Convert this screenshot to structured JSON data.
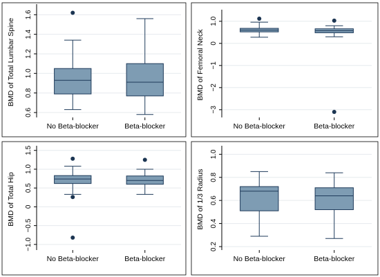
{
  "colors": {
    "box_fill": "#7e9cb3",
    "box_stroke": "#1e3a5a",
    "outlier": "#1c3552",
    "grid": "#e6eaee",
    "axis": "#000000",
    "panel_border": "#000000"
  },
  "chart_data": [
    {
      "type": "box",
      "ylabel": "BMD of Total Lumbar Spine",
      "categories": [
        "No Beta-blocker",
        "Beta-blocker"
      ],
      "ylim": [
        0.55,
        1.68
      ],
      "yticks": [
        0.6,
        0.8,
        1.0,
        1.2,
        1.4,
        1.6
      ],
      "ytick_labels": [
        "0.6",
        "0.8",
        "1.0",
        "1.2",
        "1.4",
        "1.6"
      ],
      "grid": true,
      "boxes": [
        {
          "whisker_low": 0.63,
          "q1": 0.79,
          "median": 0.93,
          "q3": 1.05,
          "whisker_high": 1.34,
          "outliers": [
            1.62
          ]
        },
        {
          "whisker_low": 0.58,
          "q1": 0.77,
          "median": 0.91,
          "q3": 1.1,
          "whisker_high": 1.56,
          "outliers": []
        }
      ]
    },
    {
      "type": "box",
      "ylabel": "BMD of Femoral Neck",
      "categories": [
        "No Beta-blocker",
        "Beta-blocker"
      ],
      "ylim": [
        -3.35,
        1.4
      ],
      "yticks": [
        -3,
        -2,
        -1,
        0,
        1
      ],
      "ytick_labels": [
        "−3",
        "−2",
        "−1",
        "0",
        "1.0"
      ],
      "grid": true,
      "boxes": [
        {
          "whisker_low": 0.28,
          "q1": 0.52,
          "median": 0.6,
          "q3": 0.68,
          "whisker_high": 0.96,
          "outliers": [
            1.12
          ]
        },
        {
          "whisker_low": 0.3,
          "q1": 0.48,
          "median": 0.57,
          "q3": 0.66,
          "whisker_high": 0.8,
          "outliers": [
            1.03,
            -3.1
          ]
        }
      ]
    },
    {
      "type": "box",
      "ylabel": "BMD of Total Hip",
      "categories": [
        "No Beta-blocker",
        "Beta-blocker"
      ],
      "ylim": [
        -1.15,
        1.55
      ],
      "yticks": [
        -1.0,
        -0.5,
        0,
        0.5,
        1.0,
        1.5
      ],
      "ytick_labels": [
        "−1.0",
        "−0.5",
        "0",
        "0.5",
        "1.0",
        "1.5"
      ],
      "grid": true,
      "boxes": [
        {
          "whisker_low": 0.33,
          "q1": 0.62,
          "median": 0.74,
          "q3": 0.83,
          "whisker_high": 1.08,
          "outliers": [
            1.28,
            0.26,
            -0.82
          ]
        },
        {
          "whisker_low": 0.33,
          "q1": 0.6,
          "median": 0.7,
          "q3": 0.82,
          "whisker_high": 1.0,
          "outliers": [
            1.25
          ]
        }
      ]
    },
    {
      "type": "box",
      "ylabel": "BMD of 1/3 Radius",
      "categories": [
        "No Beta-blocker",
        "Beta-blocker"
      ],
      "ylim": [
        0.17,
        1.05
      ],
      "yticks": [
        0.2,
        0.4,
        0.6,
        0.8,
        1.0
      ],
      "ytick_labels": [
        "0.2",
        "0.4",
        "0.6",
        "0.8",
        "1.0"
      ],
      "grid": true,
      "boxes": [
        {
          "whisker_low": 0.29,
          "q1": 0.51,
          "median": 0.68,
          "q3": 0.72,
          "whisker_high": 0.85,
          "outliers": []
        },
        {
          "whisker_low": 0.27,
          "q1": 0.52,
          "median": 0.64,
          "q3": 0.71,
          "whisker_high": 0.84,
          "outliers": []
        }
      ]
    }
  ]
}
